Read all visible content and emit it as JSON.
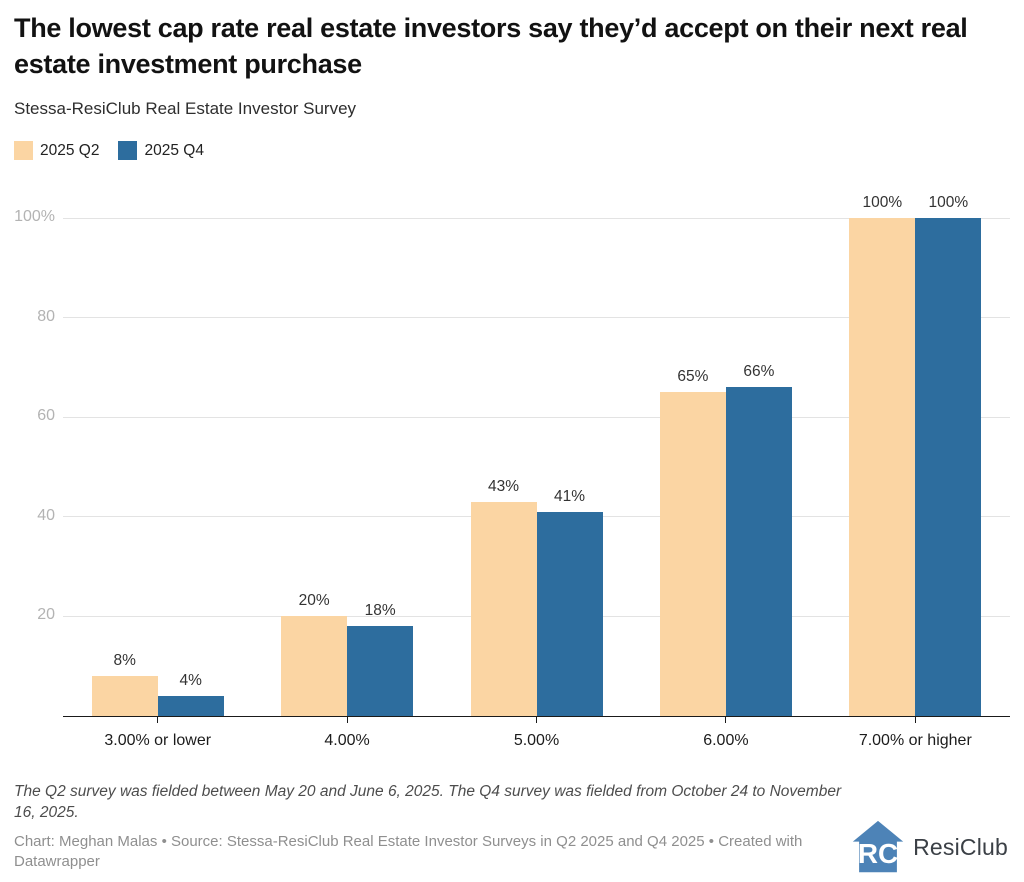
{
  "header": {
    "title": "The lowest cap rate real estate investors say they’d accept on their next real estate investment purchase",
    "subtitle": "Stessa-ResiClub Real Estate Investor Survey"
  },
  "legend": {
    "items": [
      {
        "label": "2025 Q2",
        "color": "#fbd5a3"
      },
      {
        "label": "2025 Q4",
        "color": "#2d6d9e"
      }
    ]
  },
  "chart_data": {
    "type": "bar",
    "title": "The lowest cap rate real estate investors say they’d accept on their next real estate investment purchase",
    "subtitle": "Stessa-ResiClub Real Estate Investor Survey",
    "categories": [
      "3.00% or lower",
      "4.00%",
      "5.00%",
      "6.00%",
      "7.00% or higher"
    ],
    "series": [
      {
        "name": "2025 Q2",
        "color": "#fbd5a3",
        "values": [
          8,
          20,
          43,
          65,
          100
        ]
      },
      {
        "name": "2025 Q4",
        "color": "#2d6d9e",
        "values": [
          4,
          18,
          41,
          66,
          100
        ]
      }
    ],
    "value_label_suffix": "%",
    "xlabel": "",
    "ylabel": "",
    "ylim": [
      0,
      100
    ],
    "yticks": [
      20,
      40,
      60,
      80,
      100
    ],
    "ytick_top_label": "100%",
    "grid": "horizontal",
    "legend_position": "top-left"
  },
  "footer": {
    "note": "The Q2 survey was fielded between May 20 and June 6, 2025. The Q4 survey was fielded from October 24 to November 16, 2025.",
    "byline": "Chart: Meghan Malas • Source: Stessa-ResiClub Real Estate Investor Surveys in Q2 2025 and Q4 2025 • Created with Datawrapper",
    "logo_text": "ResiClub"
  },
  "colors": {
    "series_q2": "#fbd5a3",
    "series_q4": "#2d6d9e",
    "logo_blue": "#4d83b7",
    "gridline": "#e3e3e3",
    "axis": "#1a1a1a",
    "ytick_text": "#b3b3b3"
  }
}
